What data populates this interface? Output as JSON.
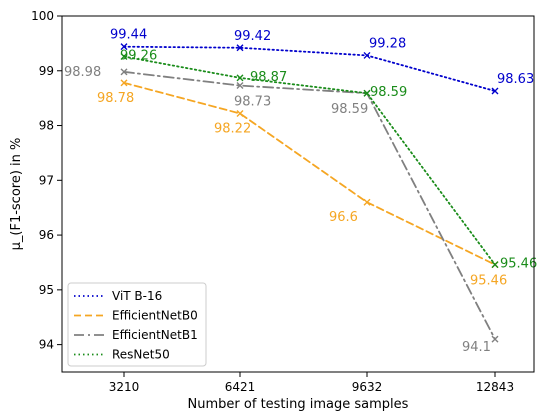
{
  "chart_data": {
    "type": "line",
    "xlabel": "Number of testing image samples",
    "ylabel": "μ_(F1-score) in %",
    "categories": [
      "3210",
      "6421",
      "9632",
      "12843"
    ],
    "ylim": [
      93.5,
      100
    ],
    "yticks": [
      "94",
      "95",
      "96",
      "97",
      "98",
      "99",
      "100"
    ],
    "grid": false,
    "legend_position": "bottom-left",
    "series": [
      {
        "name": "ViT B-16",
        "color": "#0000cc",
        "dash": "dotted",
        "values": [
          99.44,
          99.42,
          99.28,
          98.63
        ],
        "labels": [
          "99.44",
          "99.42",
          "99.28",
          "98.63"
        ]
      },
      {
        "name": "EfficientNetB0",
        "color": "#f5a623",
        "dash": "dashed",
        "values": [
          98.78,
          98.22,
          96.6,
          95.46
        ],
        "labels": [
          "98.78",
          "98.22",
          "96.6",
          "95.46"
        ]
      },
      {
        "name": "EfficientNetB1",
        "color": "#808080",
        "dash": "dashdot",
        "values": [
          98.98,
          98.73,
          98.59,
          94.1
        ],
        "labels": [
          "98.98",
          "98.73",
          "98.59",
          "94.1"
        ]
      },
      {
        "name": "ResNet50",
        "color": "#1a8c1a",
        "dash": "dotted",
        "values": [
          99.26,
          98.87,
          98.59,
          95.46
        ],
        "labels": [
          "99.26",
          "98.87",
          "98.59",
          "95.46"
        ]
      }
    ]
  }
}
